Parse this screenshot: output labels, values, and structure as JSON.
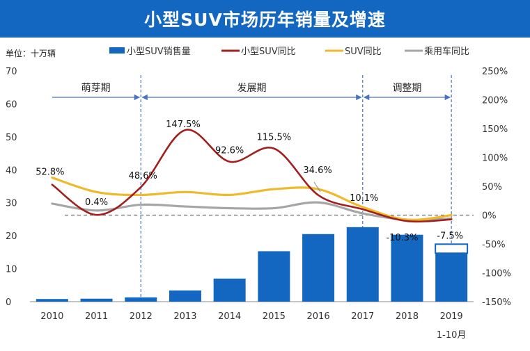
{
  "title": "小型SUV市场历年销量及增速",
  "unit_label": "单位：十万辆",
  "colors": {
    "header": "#1467c0",
    "bar": "#1467c0",
    "small_suv_yoy": "#a11f1f",
    "suv_yoy": "#f0b92b",
    "passenger_yoy": "#a6a6a6",
    "phase_arrow": "#4a72c4"
  },
  "chart_data": {
    "type": "bar",
    "categories": [
      "2010",
      "2011",
      "2012",
      "2013",
      "2014",
      "2015",
      "2016",
      "2017",
      "2018",
      "2019"
    ],
    "category_sublabels": [
      "",
      "",
      "",
      "",
      "",
      "",
      "",
      "",
      "",
      "1-10月"
    ],
    "y_left": {
      "ylim": [
        0,
        70
      ],
      "ticks": [
        "0",
        "10",
        "20",
        "30",
        "40",
        "50",
        "60",
        "70"
      ]
    },
    "y_right": {
      "ylim": [
        -150,
        250
      ],
      "ticks": [
        "-150%",
        "-100%",
        "-50%",
        "0%",
        "50%",
        "100%",
        "150%",
        "200%",
        "250%"
      ]
    },
    "series": [
      {
        "name": "小型SUV销售量",
        "type": "bar",
        "axis": "left",
        "values": [
          0.8,
          0.9,
          1.3,
          3.4,
          7.0,
          15.3,
          20.5,
          22.6,
          20.3,
          14.7
        ]
      },
      {
        "name": "小型SUV同比",
        "type": "line",
        "axis": "right",
        "values": [
          52.8,
          0.4,
          48.6,
          147.5,
          92.6,
          115.5,
          34.6,
          10.1,
          -10.3,
          -7.5
        ]
      },
      {
        "name": "SUV同比",
        "type": "line",
        "axis": "right",
        "values": [
          65,
          40,
          35,
          40,
          35,
          45,
          45,
          14,
          -8,
          0
        ]
      },
      {
        "name": "乘用车同比",
        "type": "line",
        "axis": "right",
        "values": [
          20,
          8,
          18,
          15,
          12,
          12,
          22,
          3,
          -8,
          -6
        ]
      }
    ],
    "data_labels": [
      "52.8%",
      "0.4%",
      "48.6%",
      "147.5%",
      "92.6%",
      "115.5%",
      "34.6%",
      "10.1%",
      "-10.3%",
      "-7.5%"
    ],
    "phases": [
      {
        "label": "萌芽期",
        "from": "2010",
        "to": "2012"
      },
      {
        "label": "发展期",
        "from": "2012",
        "to": "2017"
      },
      {
        "label": "调整期",
        "from": "2017",
        "to": "2019"
      }
    ],
    "legend_position": "top"
  }
}
